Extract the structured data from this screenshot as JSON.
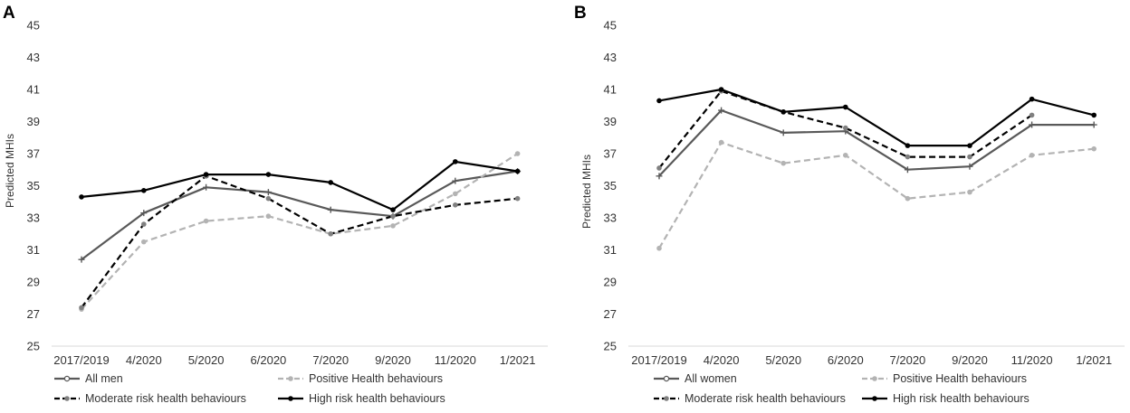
{
  "chart_data": [
    {
      "type": "line",
      "panel_label": "A",
      "title": "",
      "xlabel": "",
      "ylabel": "Predicted MHIs",
      "ylim": [
        25,
        45
      ],
      "yticks": [
        "25",
        "27",
        "29",
        "31",
        "33",
        "35",
        "37",
        "39",
        "41",
        "43",
        "45"
      ],
      "grid": false,
      "legend_position": "bottom",
      "categories": [
        "2017/2019",
        "4/2020",
        "5/2020",
        "6/2020",
        "7/2020",
        "9/2020",
        "11/2020",
        "1/2021"
      ],
      "series": [
        {
          "name": "All men",
          "color": "#595959",
          "dash": "solid",
          "marker": "plus",
          "values": [
            30.4,
            33.3,
            34.9,
            34.6,
            33.5,
            33.1,
            35.3,
            35.9
          ]
        },
        {
          "name": "Positive Health behaviours",
          "color": "#b3b3b3",
          "dash": "dashed",
          "marker": "dot",
          "values": [
            27.3,
            31.5,
            32.8,
            33.1,
            32.0,
            32.5,
            34.5,
            37.0
          ]
        },
        {
          "name": "Moderate risk health behaviours",
          "color": "#000000",
          "dash": "dashed",
          "marker": "dot",
          "values": [
            27.4,
            32.6,
            35.6,
            34.2,
            32.0,
            33.1,
            33.8,
            34.2
          ]
        },
        {
          "name": "High risk health behaviours",
          "color": "#000000",
          "dash": "solid",
          "marker": "dot",
          "values": [
            34.3,
            34.7,
            35.7,
            35.7,
            35.2,
            33.5,
            36.5,
            35.9
          ]
        }
      ]
    },
    {
      "type": "line",
      "panel_label": "B",
      "title": "",
      "xlabel": "",
      "ylabel": "Predicted MHIs",
      "ylim": [
        25,
        45
      ],
      "yticks": [
        "25",
        "27",
        "29",
        "31",
        "33",
        "35",
        "37",
        "39",
        "41",
        "43",
        "45"
      ],
      "grid": false,
      "legend_position": "bottom",
      "categories": [
        "2017/2019",
        "4/2020",
        "5/2020",
        "6/2020",
        "7/2020",
        "9/2020",
        "11/2020",
        "1/2021"
      ],
      "series": [
        {
          "name": "All women",
          "color": "#595959",
          "dash": "solid",
          "marker": "plus",
          "values": [
            35.6,
            39.7,
            38.3,
            38.4,
            36.0,
            36.2,
            38.8,
            38.8
          ]
        },
        {
          "name": "Positive Health behaviours",
          "color": "#b3b3b3",
          "dash": "dashed",
          "marker": "dot",
          "values": [
            31.1,
            37.7,
            36.4,
            36.9,
            34.2,
            34.6,
            36.9,
            37.3
          ]
        },
        {
          "name": "Moderate risk health behaviours",
          "color": "#000000",
          "dash": "dashed",
          "marker": "dot",
          "values": [
            36.1,
            40.9,
            39.6,
            38.6,
            36.8,
            36.8,
            39.4,
            null
          ]
        },
        {
          "name": "High risk health behaviours",
          "color": "#000000",
          "dash": "solid",
          "marker": "dot",
          "values": [
            40.3,
            41.0,
            39.6,
            39.9,
            37.5,
            37.5,
            40.4,
            39.4
          ]
        }
      ]
    }
  ]
}
